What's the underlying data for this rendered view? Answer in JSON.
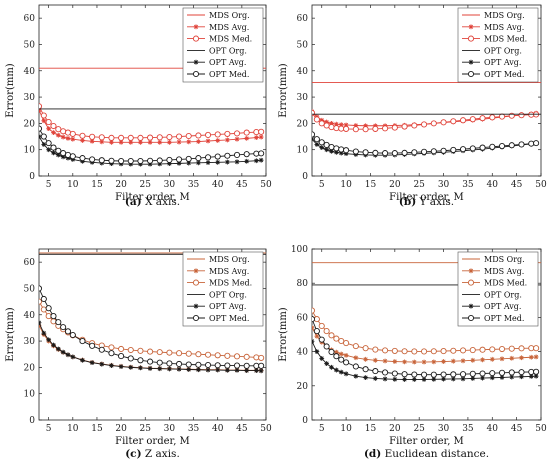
{
  "legend": {
    "mds_org": "MDS Org.",
    "mds_avg": "MDS Avg.",
    "mds_med": "MDS Med.",
    "opt_org": "OPT Org.",
    "opt_avg": "OPT Avg.",
    "opt_med": "OPT Med."
  },
  "colors": {
    "mds": "#e0433a",
    "mds_panel_c_d": "#c8643a",
    "opt": "#1a1a1a"
  },
  "chart_data": [
    {
      "type": "line",
      "caption_label": "(a)",
      "caption_text": "X axis.",
      "xlabel": "Filter order, M",
      "ylabel": "Error(mm)",
      "xlim": [
        3,
        50
      ],
      "ylim": [
        0,
        65
      ],
      "xticks": [
        5,
        10,
        15,
        20,
        25,
        30,
        35,
        40,
        45,
        50
      ],
      "yticks": [
        0,
        10,
        20,
        30,
        40,
        50,
        60
      ],
      "x": [
        3,
        4,
        5,
        6,
        7,
        8,
        9,
        10,
        12,
        14,
        16,
        18,
        20,
        22,
        24,
        26,
        28,
        30,
        32,
        34,
        36,
        38,
        40,
        42,
        44,
        46,
        48,
        49
      ],
      "series": [
        {
          "name": "MDS Org.",
          "constant": 41
        },
        {
          "name": "MDS Avg.",
          "values": [
            25,
            21,
            18,
            16.5,
            15.5,
            14.8,
            14.3,
            14,
            13.5,
            13.2,
            13,
            12.8,
            12.8,
            12.8,
            12.8,
            12.8,
            12.8,
            12.8,
            12.9,
            13,
            13.1,
            13.3,
            13.5,
            13.7,
            14,
            14.3,
            14.6,
            14.8
          ]
        },
        {
          "name": "MDS Med.",
          "values": [
            26.5,
            23,
            20.5,
            19,
            17.8,
            17,
            16.5,
            16,
            15.3,
            14.9,
            14.7,
            14.5,
            14.5,
            14.5,
            14.5,
            14.6,
            14.7,
            14.8,
            15,
            15.2,
            15.4,
            15.6,
            15.8,
            16,
            16.2,
            16.5,
            16.7,
            16.8
          ]
        },
        {
          "name": "OPT Org.",
          "constant": 25.5
        },
        {
          "name": "OPT Avg.",
          "values": [
            15,
            12,
            10,
            8.8,
            8,
            7.3,
            6.8,
            6.3,
            5.6,
            5.2,
            4.9,
            4.7,
            4.6,
            4.5,
            4.5,
            4.5,
            4.6,
            4.7,
            4.8,
            4.9,
            5,
            5.1,
            5.2,
            5.3,
            5.4,
            5.6,
            5.8,
            6
          ]
        },
        {
          "name": "OPT Med.",
          "values": [
            18,
            15,
            12.5,
            10.8,
            9.6,
            8.7,
            8,
            7.5,
            6.8,
            6.3,
            6,
            5.8,
            5.7,
            5.7,
            5.7,
            5.8,
            5.9,
            6.1,
            6.3,
            6.5,
            6.8,
            7.1,
            7.4,
            7.7,
            8,
            8.3,
            8.5,
            8.6
          ]
        }
      ]
    },
    {
      "type": "line",
      "caption_label": "(b)",
      "caption_text": "Y axis.",
      "xlabel": "Filter order, M",
      "ylabel": "Error(mm)",
      "xlim": [
        3,
        50
      ],
      "ylim": [
        0,
        65
      ],
      "xticks": [
        5,
        10,
        15,
        20,
        25,
        30,
        35,
        40,
        45,
        50
      ],
      "yticks": [
        0,
        10,
        20,
        30,
        40,
        50,
        60
      ],
      "x": [
        3,
        4,
        5,
        6,
        7,
        8,
        9,
        10,
        12,
        14,
        16,
        18,
        20,
        22,
        24,
        26,
        28,
        30,
        32,
        34,
        36,
        38,
        40,
        42,
        44,
        46,
        48,
        49
      ],
      "series": [
        {
          "name": "MDS Org.",
          "constant": 35.5
        },
        {
          "name": "MDS Avg.",
          "values": [
            24.5,
            22.5,
            21.2,
            20.5,
            20,
            19.7,
            19.5,
            19.4,
            19.2,
            19.1,
            19.1,
            19.1,
            19.2,
            19.3,
            19.5,
            19.7,
            20,
            20.3,
            20.6,
            20.9,
            21.2,
            21.6,
            22,
            22.4,
            22.8,
            23.2,
            23.6,
            23.9
          ]
        },
        {
          "name": "MDS Med.",
          "values": [
            24,
            21.5,
            20,
            19.2,
            18.6,
            18.2,
            18,
            17.9,
            17.8,
            17.8,
            17.9,
            18.1,
            18.4,
            18.8,
            19.2,
            19.6,
            20,
            20.4,
            20.8,
            21.2,
            21.6,
            22,
            22.3,
            22.6,
            22.9,
            23.1,
            23.3,
            23.4
          ]
        },
        {
          "name": "OPT Org.",
          "constant": 23.5
        },
        {
          "name": "OPT Avg.",
          "values": [
            14,
            12,
            10.8,
            10,
            9.4,
            9,
            8.7,
            8.5,
            8.2,
            8,
            7.9,
            7.9,
            8,
            8.2,
            8.4,
            8.6,
            8.8,
            9,
            9.3,
            9.6,
            9.9,
            10.2,
            10.6,
            11,
            11.4,
            11.8,
            12.2,
            12.4
          ]
        },
        {
          "name": "OPT Med.",
          "values": [
            15.8,
            14,
            12.8,
            11.8,
            11,
            10.5,
            10.1,
            9.8,
            9.3,
            9,
            8.8,
            8.7,
            8.7,
            8.8,
            9,
            9.2,
            9.4,
            9.6,
            9.9,
            10.2,
            10.5,
            10.8,
            11.1,
            11.4,
            11.7,
            12,
            12.3,
            12.5
          ]
        }
      ]
    },
    {
      "type": "line",
      "caption_label": "(c)",
      "caption_text": "Z axis.",
      "xlabel": "Filter order, M",
      "ylabel": "Error(mm)",
      "xlim": [
        3,
        50
      ],
      "ylim": [
        0,
        65
      ],
      "xticks": [
        5,
        10,
        15,
        20,
        25,
        30,
        35,
        40,
        45,
        50
      ],
      "yticks": [
        0,
        10,
        20,
        30,
        40,
        50,
        60
      ],
      "x": [
        3,
        4,
        5,
        6,
        7,
        8,
        9,
        10,
        12,
        14,
        16,
        18,
        20,
        22,
        24,
        26,
        28,
        30,
        32,
        34,
        36,
        38,
        40,
        42,
        44,
        46,
        48,
        49
      ],
      "series": [
        {
          "name": "MDS Org.",
          "constant": 63.5
        },
        {
          "name": "MDS Avg.",
          "values": [
            36,
            32.5,
            30,
            28.2,
            26.8,
            25.7,
            24.8,
            24,
            22.8,
            21.9,
            21.3,
            20.8,
            20.4,
            20.1,
            19.9,
            19.7,
            19.6,
            19.5,
            19.4,
            19.3,
            19.2,
            19.1,
            19.1,
            19,
            19,
            18.9,
            18.9,
            18.8
          ]
        },
        {
          "name": "MDS Med.",
          "values": [
            45,
            42,
            39.5,
            37.5,
            35.8,
            34.5,
            33.3,
            32.2,
            30.5,
            29.2,
            28.3,
            27.6,
            27,
            26.6,
            26.3,
            26,
            25.8,
            25.6,
            25.4,
            25.2,
            25,
            24.8,
            24.6,
            24.4,
            24.2,
            24,
            23.8,
            23.6
          ]
        },
        {
          "name": "OPT Org.",
          "constant": 63
        },
        {
          "name": "OPT Avg.",
          "values": [
            37,
            33,
            30.5,
            28.5,
            27,
            25.8,
            24.8,
            24,
            22.7,
            21.8,
            21.2,
            20.7,
            20.3,
            20,
            19.8,
            19.6,
            19.5,
            19.4,
            19.3,
            19.2,
            19.1,
            19,
            19,
            18.9,
            18.9,
            18.8,
            18.8,
            18.7
          ]
        },
        {
          "name": "OPT Med.",
          "values": [
            50,
            46,
            42.5,
            39.5,
            37.2,
            35.3,
            33.7,
            32.3,
            30,
            28.2,
            26.7,
            25.4,
            24.3,
            23.4,
            22.7,
            22.2,
            21.8,
            21.5,
            21.3,
            21.1,
            21,
            20.9,
            20.8,
            20.7,
            20.7,
            20.6,
            20.6,
            20.6
          ]
        }
      ]
    },
    {
      "type": "line",
      "caption_label": "(d)",
      "caption_text": "Euclidean distance.",
      "xlabel": "Filter order, M",
      "ylabel": "Error(mm)",
      "xlim": [
        3,
        50
      ],
      "ylim": [
        0,
        100
      ],
      "xticks": [
        5,
        10,
        15,
        20,
        25,
        30,
        35,
        40,
        45,
        50
      ],
      "yticks": [
        0,
        20,
        40,
        60,
        80,
        100
      ],
      "x": [
        3,
        4,
        5,
        6,
        7,
        8,
        9,
        10,
        12,
        14,
        16,
        18,
        20,
        22,
        24,
        26,
        28,
        30,
        32,
        34,
        36,
        38,
        40,
        42,
        44,
        46,
        48,
        49
      ],
      "series": [
        {
          "name": "MDS Org.",
          "constant": 92
        },
        {
          "name": "MDS Avg.",
          "values": [
            54,
            49,
            45.5,
            43,
            41,
            39.7,
            38.6,
            37.8,
            36.4,
            35.5,
            34.9,
            34.5,
            34.2,
            34,
            33.9,
            33.9,
            34,
            34.2,
            34.4,
            34.6,
            34.9,
            35.2,
            35.5,
            35.8,
            36.1,
            36.4,
            36.7,
            36.9
          ]
        },
        {
          "name": "MDS Med.",
          "values": [
            64,
            59,
            55,
            52,
            49.5,
            47.6,
            46.2,
            45,
            43.2,
            42,
            41.2,
            40.7,
            40.4,
            40.2,
            40.1,
            40.1,
            40.2,
            40.3,
            40.5,
            40.7,
            40.9,
            41.1,
            41.3,
            41.5,
            41.7,
            41.9,
            42,
            42
          ]
        },
        {
          "name": "OPT Org.",
          "constant": 79
        },
        {
          "name": "OPT Avg.",
          "values": [
            46,
            40,
            36,
            33,
            30.8,
            29.2,
            28,
            27,
            25.6,
            24.8,
            24.3,
            24,
            23.8,
            23.7,
            23.7,
            23.7,
            23.8,
            23.9,
            24,
            24.1,
            24.3,
            24.5,
            24.7,
            24.9,
            25.1,
            25.3,
            25.5,
            25.6
          ]
        },
        {
          "name": "OPT Med.",
          "values": [
            59,
            52,
            47,
            43,
            39.8,
            37.3,
            35.3,
            33.7,
            31.3,
            29.7,
            28.6,
            27.8,
            27.2,
            26.8,
            26.6,
            26.5,
            26.5,
            26.6,
            26.7,
            26.8,
            27,
            27.2,
            27.4,
            27.6,
            27.8,
            28,
            28.1,
            28.2
          ]
        }
      ]
    }
  ]
}
